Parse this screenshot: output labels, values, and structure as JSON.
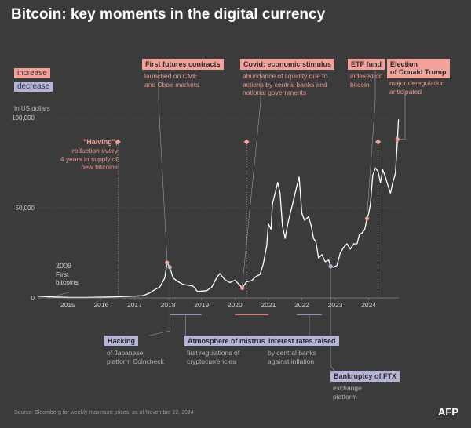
{
  "title": "Bitcoin: key moments in the digital currency",
  "legend": {
    "increase": "increase",
    "decrease": "decrease"
  },
  "unit_label": "In US dollars",
  "colors": {
    "increase": "#f2a29a",
    "decrease": "#b4b4d6",
    "line": "#ffffff",
    "background": "#3b3b3b"
  },
  "events": {
    "futures": {
      "title": "First futures contracts",
      "desc": [
        "launched on CME",
        "and Cboe markets"
      ],
      "kind": "increase"
    },
    "covid": {
      "title": "Covid: economic stimulus",
      "desc": [
        "abundance of liquidity due to",
        "actions by central banks and",
        "national governments"
      ],
      "kind": "increase"
    },
    "etf": {
      "title": "ETF fund",
      "desc": [
        "indexed on",
        "bitcoin"
      ],
      "kind": "increase"
    },
    "trump": {
      "title": [
        "Election",
        "of Donald Trump"
      ],
      "desc": [
        "major deregulation",
        "anticipated"
      ],
      "kind": "increase"
    },
    "halving": {
      "title": "\"Halving\",",
      "desc": [
        "reduction every",
        "4 years in supply of",
        "new bitcoins"
      ],
      "kind": "increase"
    },
    "first": {
      "year": "2009",
      "desc": [
        "First",
        "bitcoins"
      ]
    },
    "hacking": {
      "title": "Hacking",
      "desc": [
        "of Japanese",
        "platform Coincheck"
      ],
      "kind": "decrease"
    },
    "mistrust": {
      "title": "Atmosphere of mistrust",
      "desc": [
        "first regulations of",
        "cryptocurrencies"
      ],
      "kind": "decrease"
    },
    "rates": {
      "title": "Interest rates raised",
      "desc": [
        "by central banks",
        "against inflation"
      ],
      "kind": "decrease"
    },
    "ftx": {
      "title": "Bankruptcy of FTX",
      "desc": [
        "exchange",
        "platform"
      ],
      "kind": "decrease"
    }
  },
  "source": "Source: Bloomberg for weekly maximum prices, as of November 22, 2024",
  "logo": "AFP",
  "chart_data": {
    "type": "line",
    "title": "Bitcoin: key moments in the digital currency",
    "ylabel": "In US dollars",
    "ylim": [
      0,
      100000
    ],
    "xlim": [
      2014.1,
      2024.9
    ],
    "yticks": [
      {
        "value": 0,
        "label": "0"
      },
      {
        "value": 50000,
        "label": "50,000"
      },
      {
        "value": 100000,
        "label": "100,000"
      }
    ],
    "xticks": [
      "2015",
      "2016",
      "2017",
      "2018",
      "2019",
      "2020",
      "2021",
      "2022",
      "2023",
      "2024"
    ],
    "series": [
      {
        "x": [
          2014.1,
          2014.5,
          2015.0,
          2015.5,
          2016.0,
          2016.5,
          2017.0,
          2017.25,
          2017.45,
          2017.6,
          2017.75,
          2017.9,
          2017.97,
          2018.05,
          2018.15,
          2018.3,
          2018.45,
          2018.6,
          2018.75,
          2018.88,
          2019.0,
          2019.15,
          2019.3,
          2019.45,
          2019.55,
          2019.7,
          2019.85,
          2020.0,
          2020.15,
          2020.22,
          2020.35,
          2020.5,
          2020.6,
          2020.75,
          2020.85,
          2020.95,
          2021.0,
          2021.08,
          2021.12,
          2021.2,
          2021.28,
          2021.35,
          2021.42,
          2021.5,
          2021.58,
          2021.67,
          2021.75,
          2021.85,
          2021.92,
          2022.0,
          2022.08,
          2022.2,
          2022.28,
          2022.35,
          2022.42,
          2022.5,
          2022.6,
          2022.7,
          2022.8,
          2022.86,
          2022.95,
          2023.05,
          2023.15,
          2023.25,
          2023.35,
          2023.45,
          2023.55,
          2023.65,
          2023.72,
          2023.8,
          2023.88,
          2023.95,
          2024.0,
          2024.05,
          2024.12,
          2024.2,
          2024.28,
          2024.35,
          2024.42,
          2024.5,
          2024.58,
          2024.65,
          2024.72,
          2024.8,
          2024.86,
          2024.89
        ],
        "values": [
          900,
          600,
          300,
          250,
          430,
          650,
          1000,
          1200,
          2800,
          4500,
          6000,
          11000,
          19500,
          17000,
          11000,
          9000,
          7500,
          7000,
          6500,
          3500,
          3800,
          4000,
          5800,
          11000,
          13500,
          10000,
          8500,
          9800,
          7000,
          5500,
          9000,
          9500,
          11500,
          13000,
          19000,
          29000,
          41000,
          38000,
          52000,
          58000,
          64000,
          58000,
          40000,
          33000,
          41000,
          48000,
          54000,
          62000,
          67000,
          47000,
          43000,
          45000,
          40000,
          33000,
          31000,
          22000,
          24000,
          20000,
          21000,
          17500,
          17000,
          18000,
          25000,
          28000,
          30000,
          27000,
          30000,
          30000,
          35000,
          36000,
          38000,
          44000,
          47000,
          52000,
          68000,
          72000,
          70000,
          64000,
          71000,
          67000,
          62000,
          58000,
          64000,
          69000,
          88000,
          99000
        ]
      }
    ]
  }
}
